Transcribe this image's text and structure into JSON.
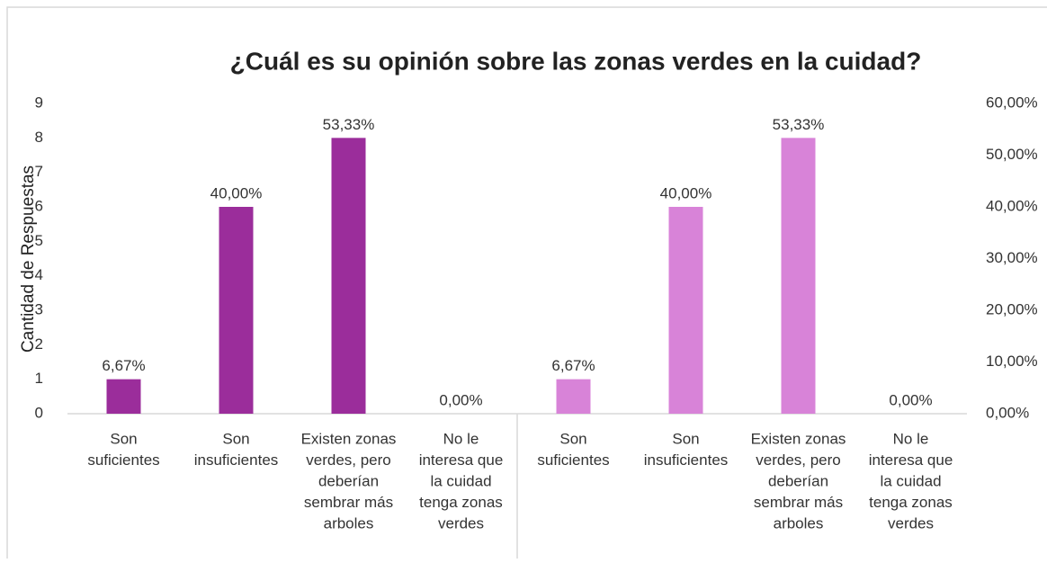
{
  "chart_data": {
    "type": "bar",
    "title": "¿Cuál es su opinión sobre las zonas verdes en la cuidad?",
    "y_label": "Cantidad de Respuestas",
    "categories": [
      [
        "Son",
        "suficientes"
      ],
      [
        "Son",
        "insuficientes"
      ],
      [
        "Existen zonas",
        "verdes, pero",
        "deberían",
        "sembrar más",
        "arboles"
      ],
      [
        "No le",
        "interesa que",
        "la cuidad",
        "tenga zonas",
        "verdes"
      ],
      [
        "Son",
        "suficientes"
      ],
      [
        "Son",
        "insuficientes"
      ],
      [
        "Existen zonas",
        "verdes, pero",
        "deberían",
        "sembrar más",
        "arboles"
      ],
      [
        "No le",
        "interesa que",
        "la cuidad",
        "tenga zonas",
        "verdes"
      ]
    ],
    "series": [
      {
        "color": "#9b2d9b",
        "values": [
          1,
          6,
          8,
          0,
          null,
          null,
          null,
          null
        ]
      },
      {
        "color": "#d883d8",
        "axis": "y2",
        "values": [
          null,
          null,
          null,
          null,
          6.67,
          40,
          53.33,
          0
        ],
        "value_labels": [
          null,
          null,
          null,
          null,
          "6,67%",
          "40,00%",
          "53,33%",
          "0,00%"
        ]
      }
    ],
    "ylim": [
      0,
      9
    ],
    "yticks": [
      0,
      1,
      2,
      3,
      4,
      5,
      6,
      7,
      8,
      9
    ],
    "y2lim": [
      0,
      60
    ],
    "y2ticks": [
      {
        "value": 0,
        "label": "0,00%"
      },
      {
        "value": 10,
        "label": "10,00%"
      },
      {
        "value": 20,
        "label": "20,00%"
      },
      {
        "value": 30,
        "label": "30,00%"
      },
      {
        "value": 40,
        "label": "40,00%"
      },
      {
        "value": 50,
        "label": "50,00%"
      },
      {
        "value": 60,
        "label": "60,00%"
      }
    ]
  }
}
